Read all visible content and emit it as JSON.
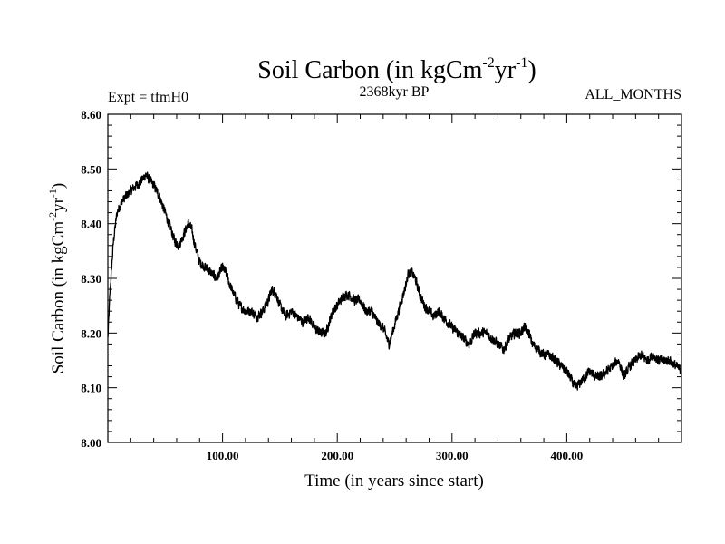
{
  "chart_data": {
    "type": "line",
    "title": "Soil Carbon (in kgCm",
    "title_sup1": "-2",
    "title_mid": "yr",
    "title_sup2": "-1",
    "title_end": ")",
    "subtitle_left": "Expt = tfmH0",
    "subtitle_center": "2368kyr BP",
    "subtitle_right": "ALL_MONTHS",
    "xlabel": "Time (in years since start)",
    "ylabel": "Soil Carbon (in kgCm",
    "ylabel_sup1": "-2",
    "ylabel_mid": "yr",
    "ylabel_sup2": "-1",
    "ylabel_end": ")",
    "xlim": [
      0,
      500
    ],
    "ylim": [
      8.0,
      8.6
    ],
    "xticks": [
      {
        "value": 100,
        "label": "100.00"
      },
      {
        "value": 200,
        "label": "200.00"
      },
      {
        "value": 300,
        "label": "300.00"
      },
      {
        "value": 400,
        "label": "400.00"
      }
    ],
    "yticks": [
      {
        "value": 8.0,
        "label": "8.00"
      },
      {
        "value": 8.1,
        "label": "8.10"
      },
      {
        "value": 8.2,
        "label": "8.20"
      },
      {
        "value": 8.3,
        "label": "8.30"
      },
      {
        "value": 8.4,
        "label": "8.40"
      },
      {
        "value": 8.5,
        "label": "8.50"
      },
      {
        "value": 8.6,
        "label": "8.60"
      }
    ],
    "series": [
      {
        "name": "Soil Carbon",
        "color": "#000000",
        "noise_amplitude": 0.012,
        "x": [
          0,
          2,
          5,
          8,
          12,
          16,
          20,
          25,
          30,
          33,
          36,
          40,
          45,
          50,
          55,
          58,
          62,
          66,
          70,
          73,
          76,
          80,
          85,
          90,
          95,
          100,
          103,
          106,
          110,
          115,
          120,
          125,
          130,
          135,
          140,
          143,
          147,
          150,
          155,
          160,
          165,
          170,
          175,
          180,
          185,
          190,
          193,
          196,
          200,
          203,
          206,
          210,
          215,
          220,
          225,
          230,
          235,
          240,
          245,
          248,
          252,
          256,
          260,
          262,
          265,
          268,
          272,
          276,
          280,
          284,
          288,
          292,
          296,
          300,
          305,
          310,
          315,
          320,
          325,
          330,
          335,
          340,
          345,
          350,
          355,
          360,
          363,
          367,
          370,
          375,
          380,
          385,
          390,
          395,
          400,
          405,
          408,
          412,
          416,
          420,
          425,
          430,
          435,
          440,
          445,
          450,
          455,
          460,
          465,
          470,
          475,
          480,
          485,
          490,
          495,
          500
        ],
        "y": [
          8.19,
          8.28,
          8.37,
          8.42,
          8.44,
          8.45,
          8.46,
          8.47,
          8.48,
          8.49,
          8.48,
          8.47,
          8.45,
          8.42,
          8.39,
          8.37,
          8.36,
          8.38,
          8.4,
          8.39,
          8.36,
          8.33,
          8.32,
          8.31,
          8.3,
          8.32,
          8.31,
          8.29,
          8.27,
          8.25,
          8.24,
          8.24,
          8.23,
          8.24,
          8.26,
          8.28,
          8.27,
          8.25,
          8.23,
          8.24,
          8.23,
          8.22,
          8.23,
          8.21,
          8.2,
          8.2,
          8.22,
          8.24,
          8.25,
          8.26,
          8.27,
          8.27,
          8.26,
          8.26,
          8.24,
          8.24,
          8.22,
          8.21,
          8.18,
          8.2,
          8.23,
          8.26,
          8.29,
          8.31,
          8.31,
          8.3,
          8.27,
          8.25,
          8.24,
          8.23,
          8.24,
          8.23,
          8.22,
          8.21,
          8.2,
          8.19,
          8.18,
          8.2,
          8.2,
          8.2,
          8.19,
          8.18,
          8.17,
          8.19,
          8.2,
          8.2,
          8.21,
          8.2,
          8.18,
          8.17,
          8.16,
          8.16,
          8.15,
          8.14,
          8.13,
          8.11,
          8.1,
          8.11,
          8.12,
          8.13,
          8.12,
          8.12,
          8.13,
          8.14,
          8.15,
          8.12,
          8.14,
          8.15,
          8.16,
          8.15,
          8.16,
          8.15,
          8.15,
          8.15,
          8.14,
          8.13
        ]
      }
    ]
  }
}
